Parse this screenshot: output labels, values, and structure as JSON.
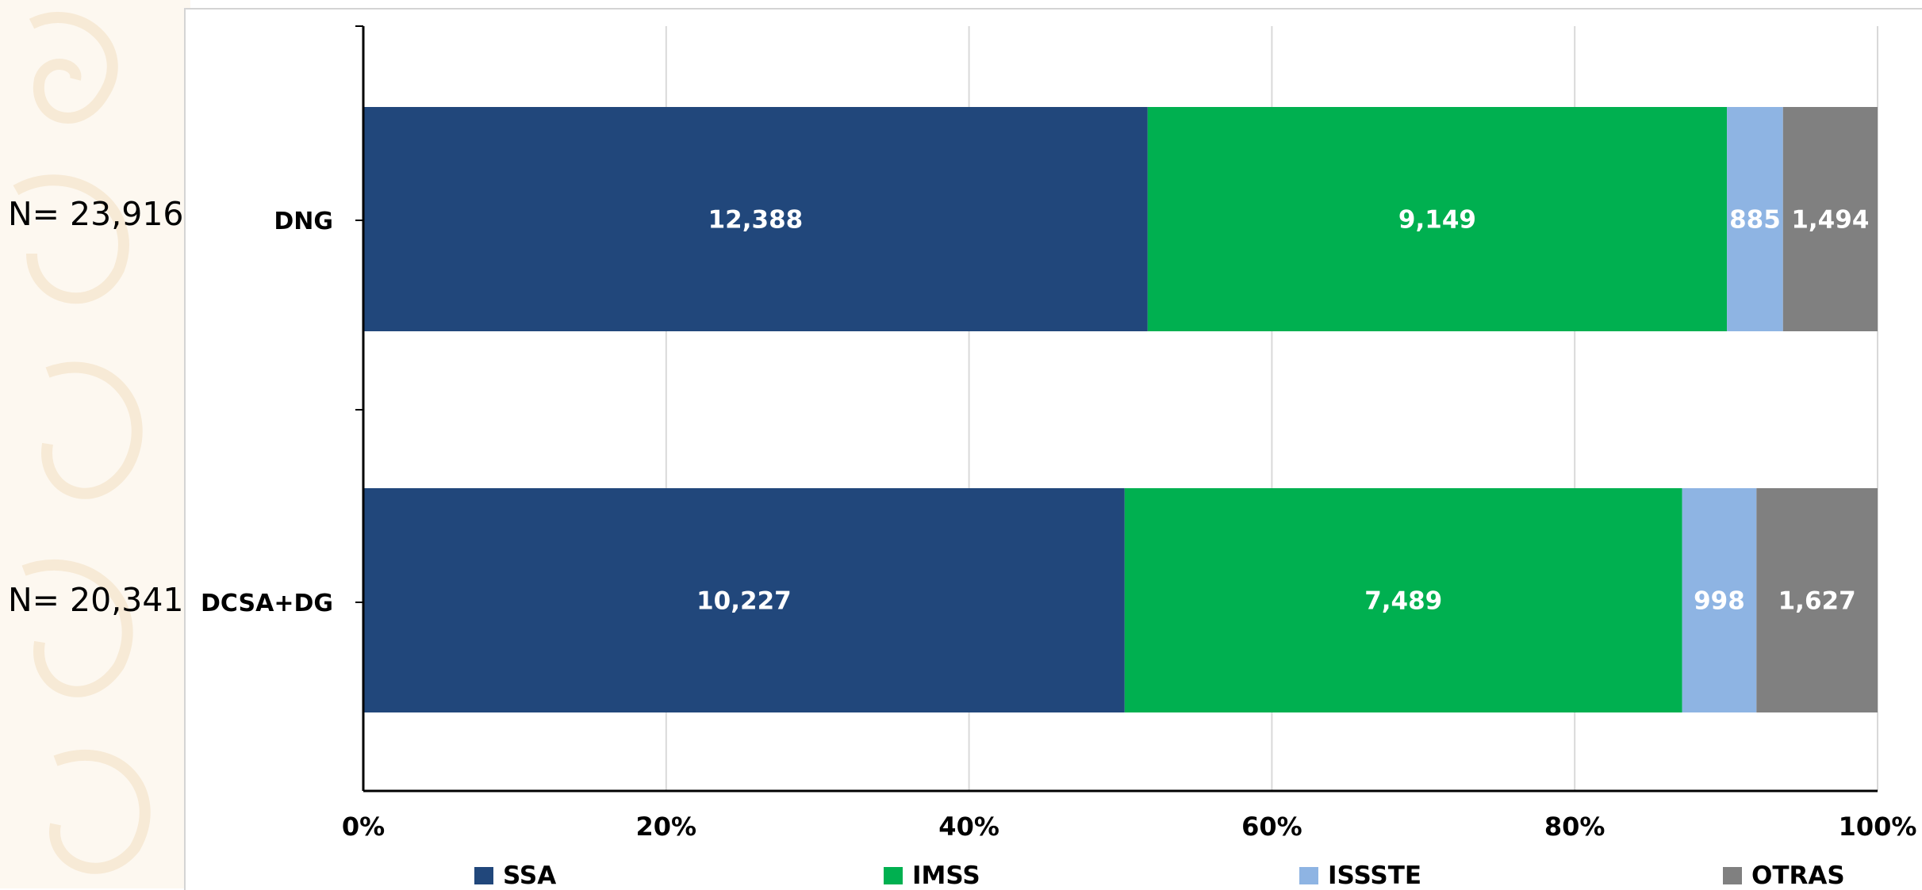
{
  "annotations": {
    "n_labels": [
      "N= 23,916",
      "N= 20,341"
    ]
  },
  "colors": {
    "SSA": "#21477b",
    "IMSS": "#00b050",
    "ISSSTE": "#8eb4e3",
    "OTRAS": "#808080",
    "grid": "#d9d9d9",
    "decor": "#fbf3e6"
  },
  "chart_data": {
    "type": "bar",
    "orientation": "horizontal",
    "stacked": "percent",
    "categories": [
      "DNG",
      "DCSA+DG"
    ],
    "series": [
      {
        "name": "SSA",
        "values": [
          12388,
          10227
        ],
        "labels": [
          "12,388",
          "10,227"
        ]
      },
      {
        "name": "IMSS",
        "values": [
          9149,
          7489
        ],
        "labels": [
          "9,149",
          "7,489"
        ]
      },
      {
        "name": "ISSSTE",
        "values": [
          885,
          998
        ],
        "labels": [
          "885",
          "998"
        ]
      },
      {
        "name": "OTRAS",
        "values": [
          1494,
          1627
        ],
        "labels": [
          "1,494",
          "1,627"
        ]
      }
    ],
    "xlim": [
      0,
      100
    ],
    "x_ticks": [
      "0%",
      "20%",
      "40%",
      "60%",
      "80%",
      "100%"
    ],
    "grid": true,
    "legend": "bottom"
  }
}
